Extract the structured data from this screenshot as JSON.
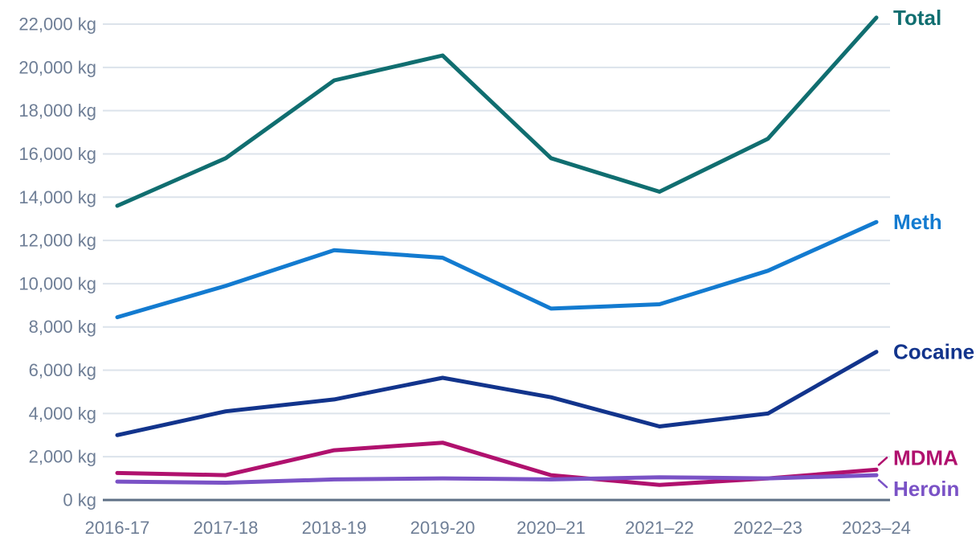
{
  "chart_data": {
    "type": "line",
    "unit": "kg",
    "categories": [
      "2016-17",
      "2017-18",
      "2018-19",
      "2019-20",
      "2020–21",
      "2021–22",
      "2022–23",
      "2023–24"
    ],
    "series": [
      {
        "name": "Total",
        "color": "#106E70",
        "values": [
          13600,
          15800,
          19400,
          20550,
          15800,
          14250,
          16700,
          22300
        ]
      },
      {
        "name": "Meth",
        "color": "#137BD0",
        "values": [
          8450,
          9900,
          11550,
          11200,
          8850,
          9050,
          10600,
          12850
        ]
      },
      {
        "name": "Cocaine",
        "color": "#12348C",
        "values": [
          3000,
          4100,
          4650,
          5650,
          4750,
          3400,
          4000,
          6850
        ]
      },
      {
        "name": "MDMA",
        "color": "#B0116E",
        "values": [
          1250,
          1150,
          2300,
          2650,
          1150,
          700,
          1000,
          1400
        ]
      },
      {
        "name": "Heroin",
        "color": "#7A52C6",
        "values": [
          850,
          800,
          950,
          1000,
          950,
          1050,
          1000,
          1150
        ]
      }
    ],
    "ylim": [
      0,
      22000
    ],
    "ytick_step": 2000,
    "ytick_labels": [
      "0 kg",
      "2,000 kg",
      "4,000 kg",
      "6,000 kg",
      "8,000 kg",
      "10,000 kg",
      "12,000 kg",
      "14,000 kg",
      "16,000 kg",
      "18,000 kg",
      "20,000 kg",
      "22,000 kg"
    ],
    "grid": true,
    "legend_position": "right-end-labels"
  },
  "colors": {
    "background": "#FFFFFF",
    "axis_text": "#6E7E96",
    "gridline": "#DCE3EB",
    "axis_line": "#5E7086"
  }
}
